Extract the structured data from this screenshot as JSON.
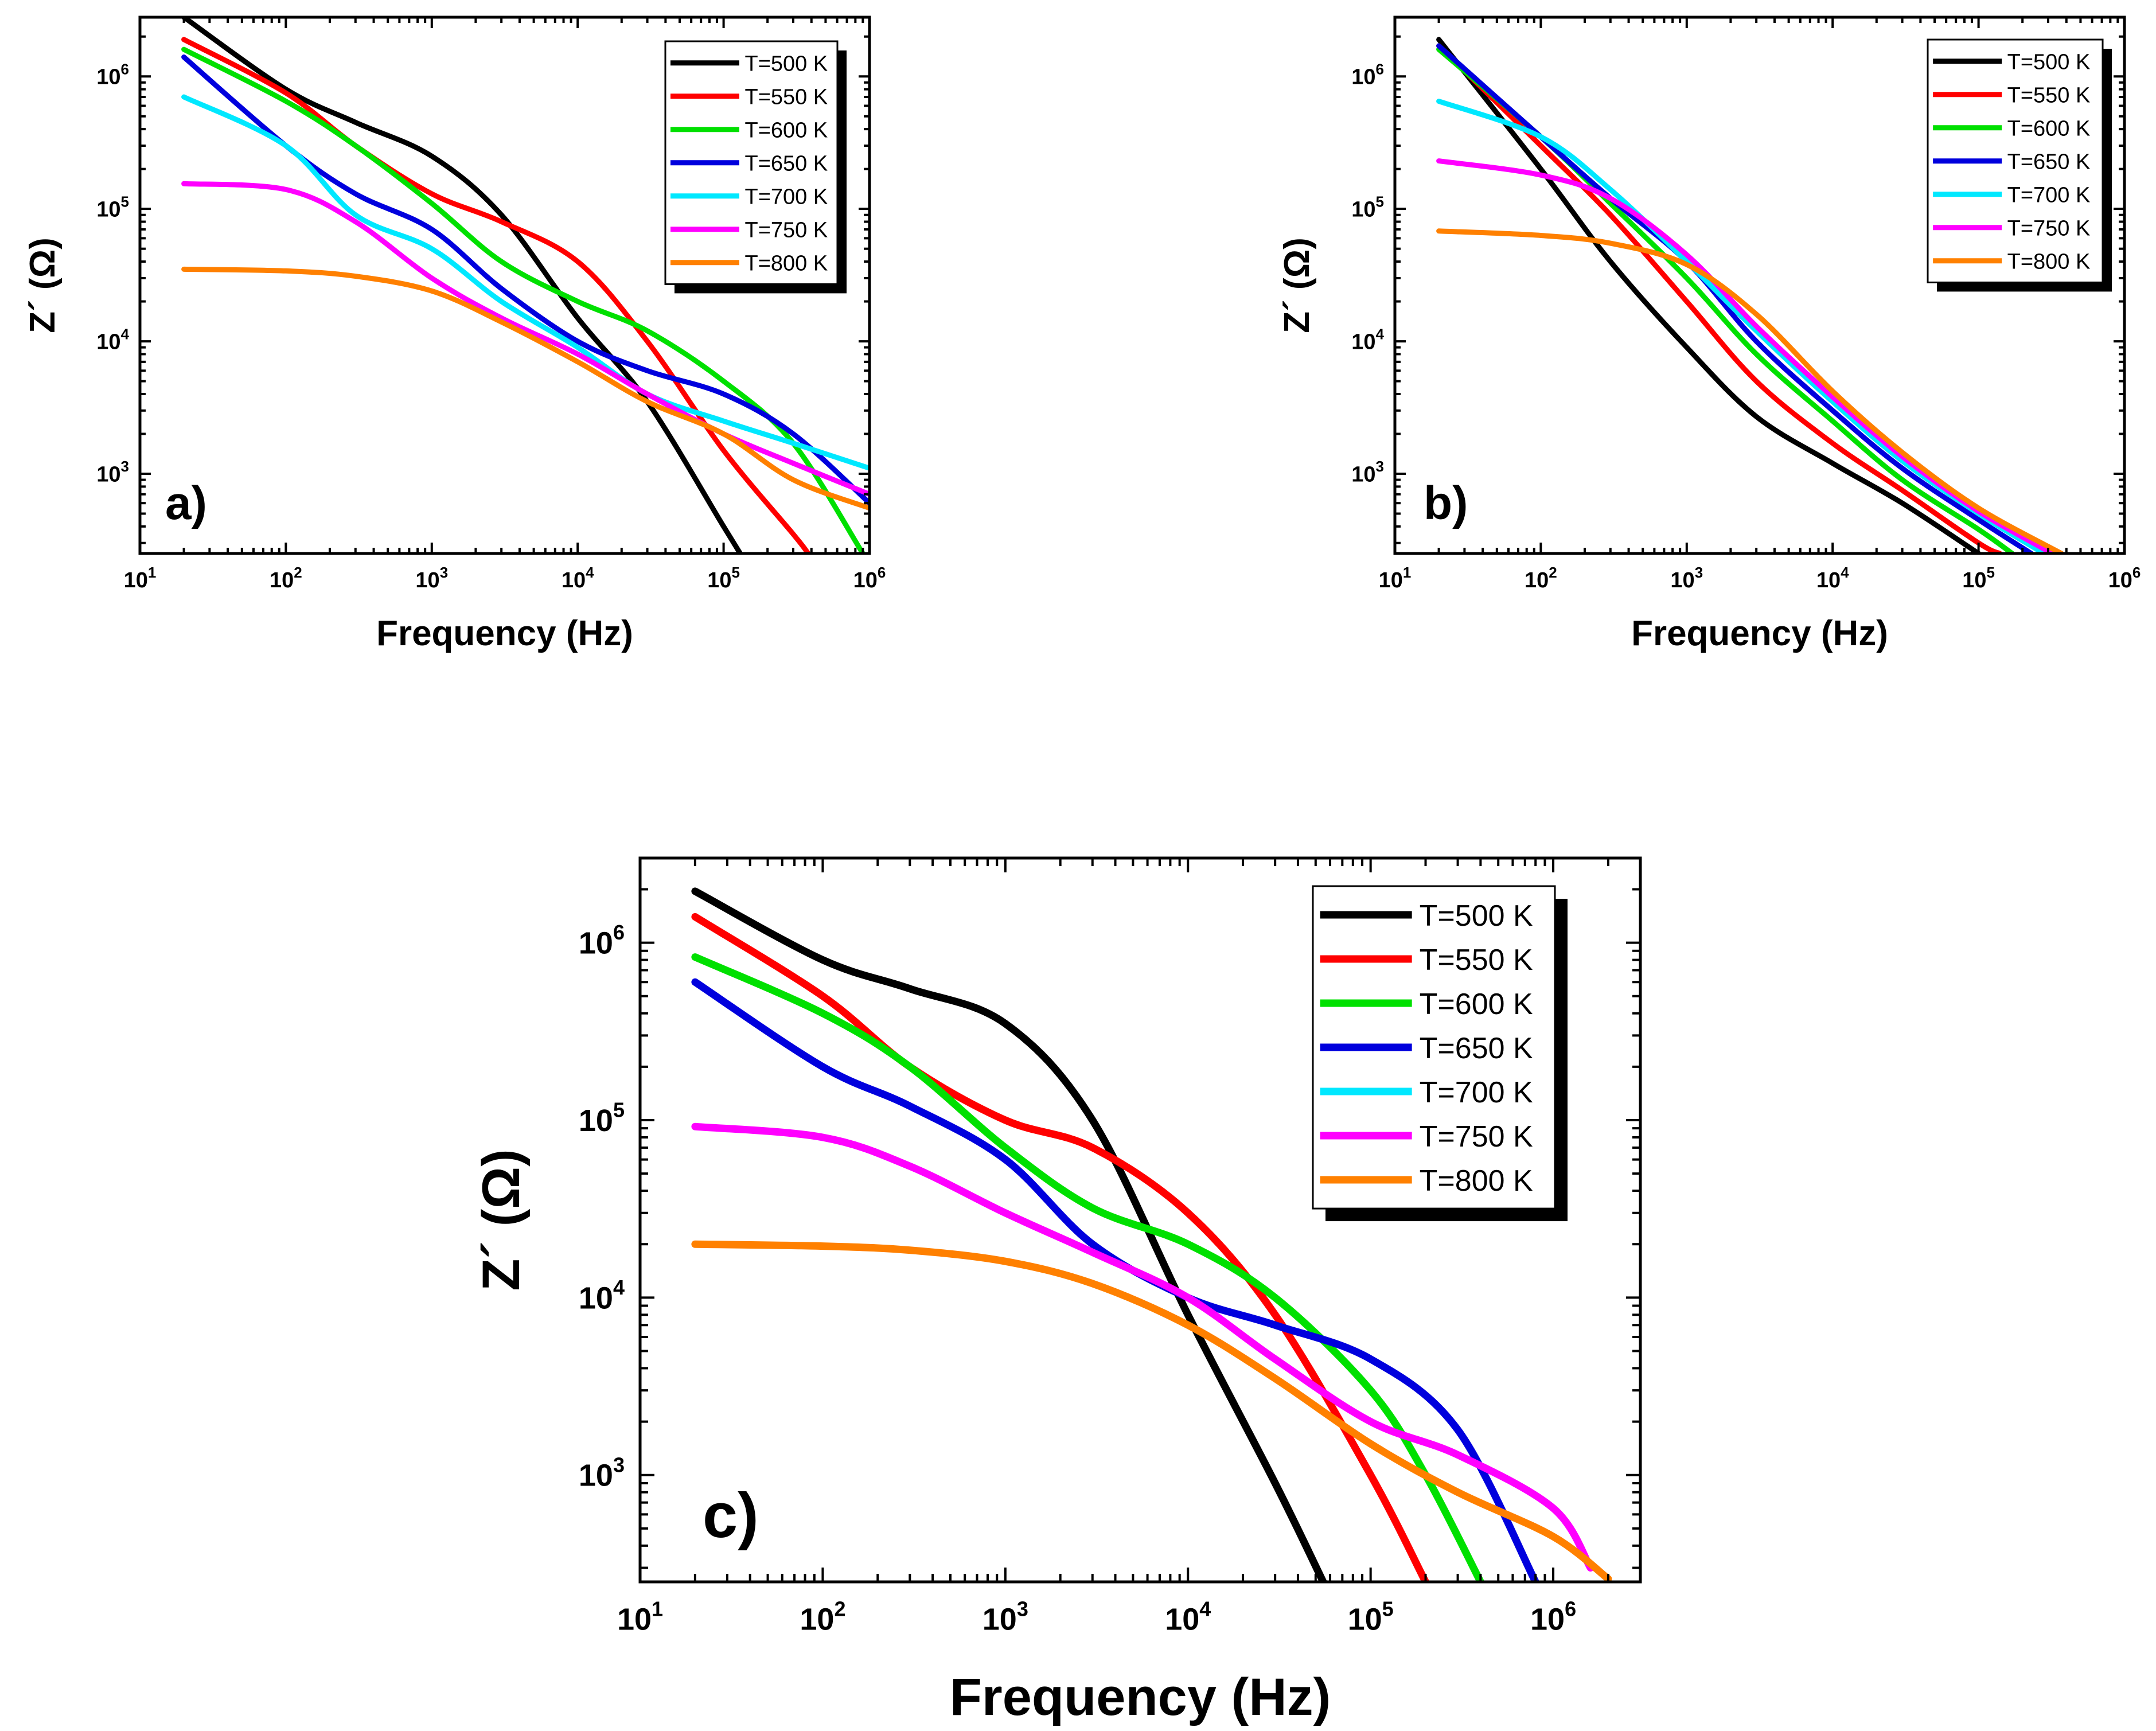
{
  "chart_data": [
    {
      "id": "a",
      "type": "line",
      "panel_label": "a)",
      "xlabel": "Frequency (Hz)",
      "ylabel": "Z´ (Ω)",
      "xscale": "log",
      "yscale": "log",
      "xlim": [
        10,
        1000000
      ],
      "ylim": [
        250,
        2800000
      ],
      "xticks": [
        1,
        2,
        3,
        4,
        5,
        6
      ],
      "yticks": [
        3,
        4,
        5,
        6
      ],
      "tick_base": "10",
      "legend_position": "top-right",
      "series": [
        {
          "name": "T=500 K",
          "color": "#000000",
          "x": [
            20,
            100,
            300,
            1000,
            3000,
            10000,
            30000,
            100000,
            130000
          ],
          "y": [
            2800000,
            800000,
            450000,
            250000,
            90000,
            15000,
            3500,
            400,
            250
          ]
        },
        {
          "name": "T=550 K",
          "color": "#ff0000",
          "x": [
            20,
            100,
            300,
            1000,
            3000,
            10000,
            30000,
            100000,
            300000,
            380000
          ],
          "y": [
            1900000,
            750000,
            300000,
            130000,
            80000,
            40000,
            10000,
            1500,
            350,
            250
          ]
        },
        {
          "name": "T=600 K",
          "color": "#00e000",
          "x": [
            20,
            100,
            300,
            1000,
            3000,
            10000,
            30000,
            100000,
            300000,
            900000
          ],
          "y": [
            1600000,
            650000,
            300000,
            110000,
            40000,
            20000,
            12000,
            5000,
            1700,
            250
          ]
        },
        {
          "name": "T=650 K",
          "color": "#0000dd",
          "x": [
            20,
            100,
            300,
            1000,
            3000,
            10000,
            30000,
            100000,
            300000,
            1000000
          ],
          "y": [
            1400000,
            300000,
            130000,
            70000,
            25000,
            10000,
            6000,
            4000,
            2000,
            600
          ]
        },
        {
          "name": "T=700 K",
          "color": "#00e8ff",
          "x": [
            20,
            100,
            300,
            1000,
            3000,
            10000,
            30000,
            100000,
            300000,
            1000000
          ],
          "y": [
            700000,
            300000,
            90000,
            50000,
            20000,
            9000,
            4000,
            2500,
            1700,
            1100
          ]
        },
        {
          "name": "T=750 K",
          "color": "#ff00ff",
          "x": [
            20,
            100,
            300,
            1000,
            3000,
            10000,
            30000,
            100000,
            300000,
            1000000
          ],
          "y": [
            155000,
            140000,
            80000,
            30000,
            15000,
            8000,
            4000,
            2000,
            1200,
            700
          ]
        },
        {
          "name": "T=800 K",
          "color": "#ff8000",
          "x": [
            20,
            100,
            300,
            1000,
            3000,
            10000,
            30000,
            100000,
            300000,
            1000000
          ],
          "y": [
            35000,
            34000,
            31000,
            24000,
            14000,
            7000,
            3500,
            2000,
            900,
            550
          ]
        }
      ]
    },
    {
      "id": "b",
      "type": "line",
      "panel_label": "b)",
      "xlabel": "Frequency (Hz)",
      "ylabel": "Z´ (Ω)",
      "xscale": "log",
      "yscale": "log",
      "xlim": [
        10,
        1000000
      ],
      "ylim": [
        250,
        2800000
      ],
      "xticks": [
        1,
        2,
        3,
        4,
        5,
        6
      ],
      "yticks": [
        3,
        4,
        5,
        6
      ],
      "tick_base": "10",
      "legend_position": "top-right",
      "series": [
        {
          "name": "T=500 K",
          "color": "#000000",
          "x": [
            20,
            100,
            300,
            1000,
            3000,
            10000,
            30000,
            100000
          ],
          "y": [
            1900000,
            200000,
            40000,
            9000,
            2700,
            1200,
            600,
            250
          ]
        },
        {
          "name": "T=550 K",
          "color": "#ff0000",
          "x": [
            20,
            100,
            300,
            1000,
            3000,
            10000,
            30000,
            100000,
            140000
          ],
          "y": [
            1700000,
            300000,
            90000,
            20000,
            5000,
            1700,
            750,
            300,
            250
          ]
        },
        {
          "name": "T=600 K",
          "color": "#00e000",
          "x": [
            20,
            100,
            300,
            1000,
            3000,
            10000,
            30000,
            100000,
            170000
          ],
          "y": [
            1600000,
            350000,
            110000,
            30000,
            8000,
            2500,
            900,
            380,
            250
          ]
        },
        {
          "name": "T=650 K",
          "color": "#0000dd",
          "x": [
            20,
            100,
            300,
            1000,
            3000,
            10000,
            30000,
            100000,
            230000
          ],
          "y": [
            1700000,
            350000,
            120000,
            40000,
            10000,
            3000,
            1100,
            450,
            250
          ]
        },
        {
          "name": "T=700 K",
          "color": "#00e8ff",
          "x": [
            20,
            100,
            300,
            1000,
            3000,
            10000,
            30000,
            100000,
            280000
          ],
          "y": [
            650000,
            350000,
            140000,
            40000,
            12000,
            3500,
            1250,
            500,
            250
          ]
        },
        {
          "name": "T=750 K",
          "color": "#ff00ff",
          "x": [
            20,
            100,
            300,
            1000,
            3000,
            10000,
            30000,
            100000,
            320000
          ],
          "y": [
            230000,
            180000,
            120000,
            45000,
            13000,
            3800,
            1350,
            520,
            250
          ]
        },
        {
          "name": "T=800 K",
          "color": "#ff8000",
          "x": [
            20,
            100,
            300,
            1000,
            3000,
            10000,
            30000,
            100000,
            370000
          ],
          "y": [
            68000,
            63000,
            55000,
            38000,
            16000,
            4200,
            1450,
            550,
            250
          ]
        }
      ]
    },
    {
      "id": "c",
      "type": "line",
      "panel_label": "c)",
      "xlabel": "Frequency (Hz)",
      "ylabel": "Z´ (Ω)",
      "xscale": "log",
      "yscale": "log",
      "xlim": [
        10,
        3000000
      ],
      "ylim": [
        250,
        3000000
      ],
      "xticks": [
        1,
        2,
        3,
        4,
        5,
        6
      ],
      "yticks": [
        3,
        4,
        5,
        6
      ],
      "tick_base": "10",
      "legend_position": "top-right",
      "series": [
        {
          "name": "T=500 K",
          "color": "#000000",
          "x": [
            20,
            100,
            300,
            1000,
            3000,
            10000,
            30000,
            55000
          ],
          "y": [
            1950000,
            800000,
            550000,
            350000,
            100000,
            8000,
            900,
            250
          ]
        },
        {
          "name": "T=550 K",
          "color": "#ff0000",
          "x": [
            20,
            100,
            300,
            1000,
            3000,
            10000,
            30000,
            100000,
            200000
          ],
          "y": [
            1400000,
            500000,
            200000,
            100000,
            70000,
            30000,
            8000,
            1000,
            250
          ]
        },
        {
          "name": "T=600 K",
          "color": "#00e000",
          "x": [
            20,
            100,
            300,
            1000,
            3000,
            10000,
            30000,
            100000,
            200000,
            400000
          ],
          "y": [
            830000,
            400000,
            200000,
            70000,
            32000,
            20000,
            10000,
            3000,
            1000,
            250
          ]
        },
        {
          "name": "T=650 K",
          "color": "#0000dd",
          "x": [
            20,
            100,
            300,
            1000,
            3000,
            10000,
            30000,
            100000,
            300000,
            800000
          ],
          "y": [
            600000,
            200000,
            120000,
            60000,
            20000,
            10000,
            7000,
            4500,
            1800,
            250
          ]
        },
        {
          "name": "T=750 K",
          "color": "#ff00ff",
          "x": [
            20,
            100,
            300,
            1000,
            3000,
            10000,
            30000,
            100000,
            300000,
            1000000,
            1600000
          ],
          "y": [
            92000,
            80000,
            55000,
            30000,
            18000,
            10000,
            4500,
            2000,
            1300,
            650,
            300
          ]
        },
        {
          "name": "T=800 K",
          "color": "#ff8000",
          "x": [
            20,
            100,
            300,
            1000,
            3000,
            10000,
            30000,
            100000,
            300000,
            1000000,
            2000000
          ],
          "y": [
            20000,
            19500,
            18500,
            16000,
            12000,
            7000,
            3500,
            1500,
            800,
            450,
            260
          ]
        }
      ],
      "legend_entries": [
        {
          "name": "T=500 K",
          "color": "#000000"
        },
        {
          "name": "T=550 K",
          "color": "#ff0000"
        },
        {
          "name": "T=600 K",
          "color": "#00e000"
        },
        {
          "name": "T=650 K",
          "color": "#0000dd"
        },
        {
          "name": "T=700 K",
          "color": "#00e8ff"
        },
        {
          "name": "T=750 K",
          "color": "#ff00ff"
        },
        {
          "name": "T=800 K",
          "color": "#ff8000"
        }
      ]
    }
  ]
}
